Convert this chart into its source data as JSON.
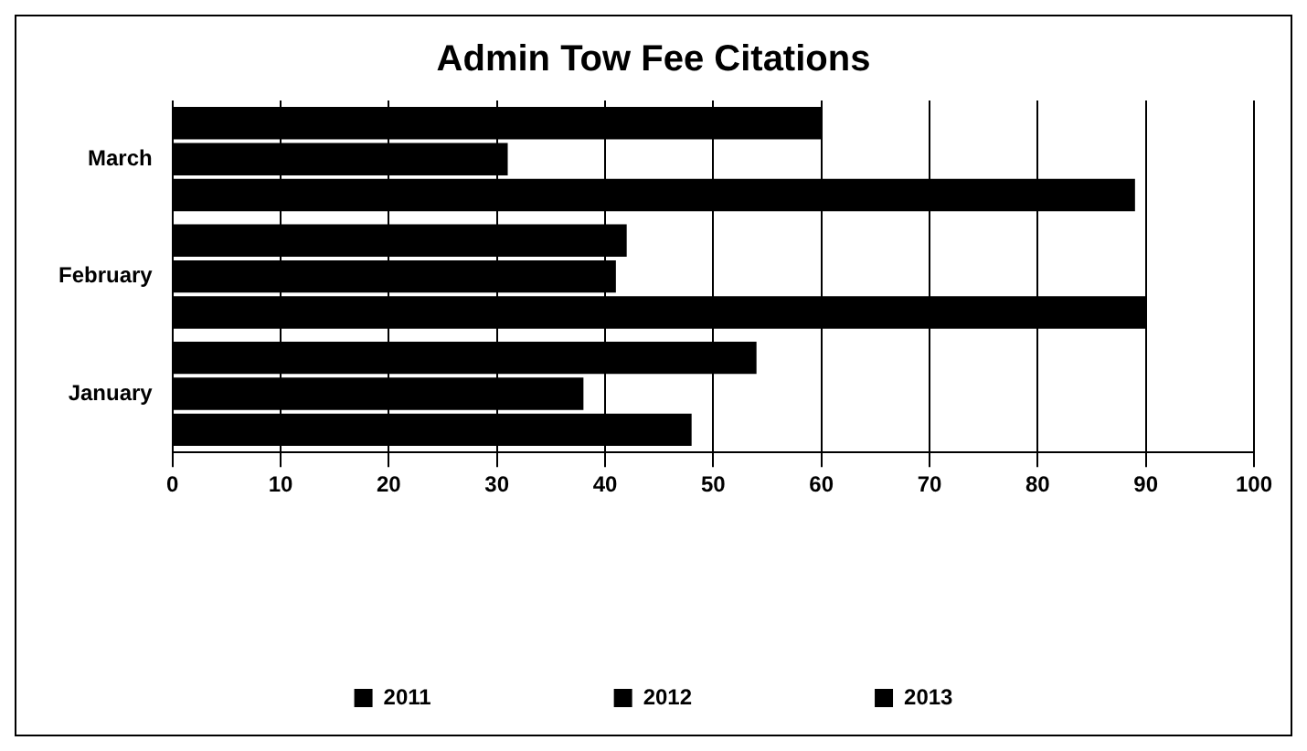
{
  "chart_data": {
    "type": "bar",
    "title": "Admin Tow Fee Citations",
    "orientation": "horizontal",
    "categories": [
      "March",
      "February",
      "January"
    ],
    "series": [
      {
        "name": "2011",
        "color": "#000000",
        "values": [
          60,
          42,
          54
        ]
      },
      {
        "name": "2012",
        "color": "#000000",
        "values": [
          31,
          41,
          38
        ]
      },
      {
        "name": "2013",
        "color": "#000000",
        "values": [
          89,
          90,
          48
        ]
      }
    ],
    "xlim": [
      0,
      100
    ],
    "xticks": [
      0,
      10,
      20,
      30,
      40,
      50,
      60,
      70,
      80,
      90,
      100
    ],
    "grid": "x",
    "legend": "bottom"
  }
}
